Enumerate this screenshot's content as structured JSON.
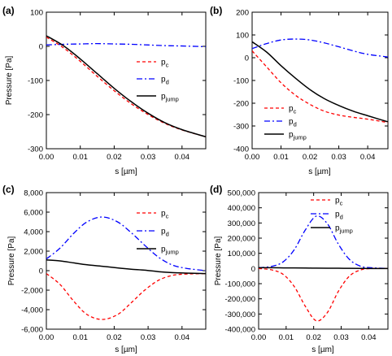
{
  "chart_data": [
    {
      "panel": "(a)",
      "type": "line",
      "xlabel": "s [µm]",
      "ylabel": "Pressure [Pa]",
      "xlim": [
        0,
        0.047
      ],
      "ylim": [
        -300,
        100
      ],
      "xticks": [
        "0.00",
        "0.01",
        "0.02",
        "0.03",
        "0.04"
      ],
      "yticks": [
        "-300",
        "-200",
        "-100",
        "0",
        "100"
      ],
      "legend_position": "right",
      "series": [
        {
          "name": "c",
          "color": "#ff0000",
          "dash": "dashed",
          "x": [
            0,
            0.005,
            0.01,
            0.015,
            0.02,
            0.025,
            0.03,
            0.035,
            0.04,
            0.047
          ],
          "y": [
            27,
            -4,
            -44,
            -88,
            -130,
            -168,
            -200,
            -226,
            -245,
            -265
          ]
        },
        {
          "name": "d",
          "color": "#0000ff",
          "dash": "dashdot",
          "x": [
            0,
            0.005,
            0.01,
            0.015,
            0.02,
            0.025,
            0.03,
            0.035,
            0.04,
            0.047
          ],
          "y": [
            4,
            6,
            7,
            8,
            7,
            6,
            4,
            2,
            1,
            -1
          ]
        },
        {
          "name": "jump",
          "color": "#000000",
          "dash": "solid",
          "x": [
            0,
            0.005,
            0.01,
            0.015,
            0.02,
            0.025,
            0.03,
            0.035,
            0.04,
            0.047
          ],
          "y": [
            31,
            2,
            -37,
            -80,
            -123,
            -162,
            -196,
            -224,
            -244,
            -265
          ]
        }
      ]
    },
    {
      "panel": "(b)",
      "type": "line",
      "xlabel": "s [µm]",
      "ylabel": "",
      "xlim": [
        0,
        0.047
      ],
      "ylim": [
        -400,
        200
      ],
      "xticks": [
        "0.00",
        "0.01",
        "0.02",
        "0.03",
        "0.04"
      ],
      "yticks": [
        "-400",
        "-300",
        "-200",
        "-100",
        "0",
        "100",
        "200"
      ],
      "legend_position": "bottom-left",
      "series": [
        {
          "name": "c",
          "color": "#ff0000",
          "dash": "dashed",
          "x": [
            0,
            0.005,
            0.01,
            0.015,
            0.02,
            0.025,
            0.03,
            0.035,
            0.04,
            0.047
          ],
          "y": [
            30,
            -40,
            -110,
            -165,
            -205,
            -235,
            -252,
            -262,
            -270,
            -285
          ]
        },
        {
          "name": "d",
          "color": "#0000ff",
          "dash": "dashdot",
          "x": [
            0,
            0.005,
            0.01,
            0.015,
            0.02,
            0.025,
            0.03,
            0.035,
            0.04,
            0.047
          ],
          "y": [
            40,
            62,
            78,
            82,
            78,
            65,
            48,
            30,
            15,
            3
          ]
        },
        {
          "name": "jump",
          "color": "#000000",
          "dash": "solid",
          "x": [
            0,
            0.005,
            0.01,
            0.015,
            0.02,
            0.025,
            0.03,
            0.035,
            0.04,
            0.047
          ],
          "y": [
            70,
            25,
            -35,
            -90,
            -140,
            -180,
            -210,
            -235,
            -255,
            -282
          ]
        }
      ]
    },
    {
      "panel": "(c)",
      "type": "line",
      "xlabel": "s [µm]",
      "ylabel": "Pressure [Pa]",
      "xlim": [
        0,
        0.047
      ],
      "ylim": [
        -6000,
        8000
      ],
      "xticks": [
        "0.00",
        "0.01",
        "0.02",
        "0.03",
        "0.04"
      ],
      "yticks": [
        "-6,000",
        "-4,000",
        "-2,000",
        "0",
        "2,000",
        "4,000",
        "6,000",
        "8,000"
      ],
      "legend_position": "top-right",
      "series": [
        {
          "name": "c",
          "color": "#ff0000",
          "dash": "dashed",
          "x": [
            0,
            0.004,
            0.008,
            0.012,
            0.0165,
            0.021,
            0.025,
            0.029,
            0.033,
            0.037,
            0.041,
            0.047
          ],
          "y": [
            -300,
            -1400,
            -3100,
            -4500,
            -5000,
            -4500,
            -3300,
            -2000,
            -1000,
            -500,
            -350,
            -300
          ]
        },
        {
          "name": "d",
          "color": "#0000ff",
          "dash": "dashdot",
          "x": [
            0,
            0.004,
            0.008,
            0.012,
            0.0165,
            0.021,
            0.025,
            0.029,
            0.033,
            0.037,
            0.041,
            0.047
          ],
          "y": [
            1200,
            2300,
            3800,
            5000,
            5500,
            5000,
            3900,
            2600,
            1400,
            600,
            250,
            0
          ]
        },
        {
          "name": "jump",
          "color": "#000000",
          "dash": "solid",
          "x": [
            0,
            0.004,
            0.008,
            0.012,
            0.0165,
            0.021,
            0.025,
            0.029,
            0.033,
            0.037,
            0.041,
            0.047
          ],
          "y": [
            1100,
            1000,
            800,
            600,
            450,
            280,
            150,
            50,
            -100,
            -200,
            -250,
            -300
          ]
        }
      ]
    },
    {
      "panel": "(d)",
      "type": "line",
      "xlabel": "s [µm]",
      "ylabel": "Pressure [Pa]",
      "xlim": [
        0,
        0.047
      ],
      "ylim": [
        -400000,
        500000
      ],
      "xticks": [
        "0.00",
        "0.01",
        "0.02",
        "0.03",
        "0.04"
      ],
      "yticks": [
        "-400,000",
        "-300,000",
        "-200,000",
        "-100,000",
        "0",
        "100,000",
        "200,000",
        "300,000",
        "400,000",
        "500,000"
      ],
      "legend_position": "top-right",
      "series": [
        {
          "name": "c",
          "color": "#ff0000",
          "dash": "dashed",
          "x": [
            0,
            0.005,
            0.009,
            0.013,
            0.017,
            0.021,
            0.025,
            0.029,
            0.033,
            0.037,
            0.041,
            0.047
          ],
          "y": [
            0,
            -10000,
            -40000,
            -120000,
            -250000,
            -345000,
            -290000,
            -150000,
            -50000,
            -10000,
            0,
            0
          ]
        },
        {
          "name": "d",
          "color": "#0000ff",
          "dash": "dashdot",
          "x": [
            0,
            0.005,
            0.009,
            0.013,
            0.017,
            0.021,
            0.025,
            0.029,
            0.033,
            0.037,
            0.041,
            0.047
          ],
          "y": [
            5000,
            15000,
            45000,
            125000,
            255000,
            345000,
            295000,
            160000,
            60000,
            15000,
            5000,
            0
          ]
        },
        {
          "name": "jump",
          "color": "#000000",
          "dash": "solid",
          "x": [
            0,
            0.005,
            0.009,
            0.013,
            0.017,
            0.021,
            0.025,
            0.029,
            0.033,
            0.037,
            0.041,
            0.047
          ],
          "y": [
            5000,
            5000,
            4000,
            3500,
            3000,
            2500,
            2000,
            1500,
            1000,
            500,
            0,
            0
          ]
        }
      ]
    }
  ]
}
